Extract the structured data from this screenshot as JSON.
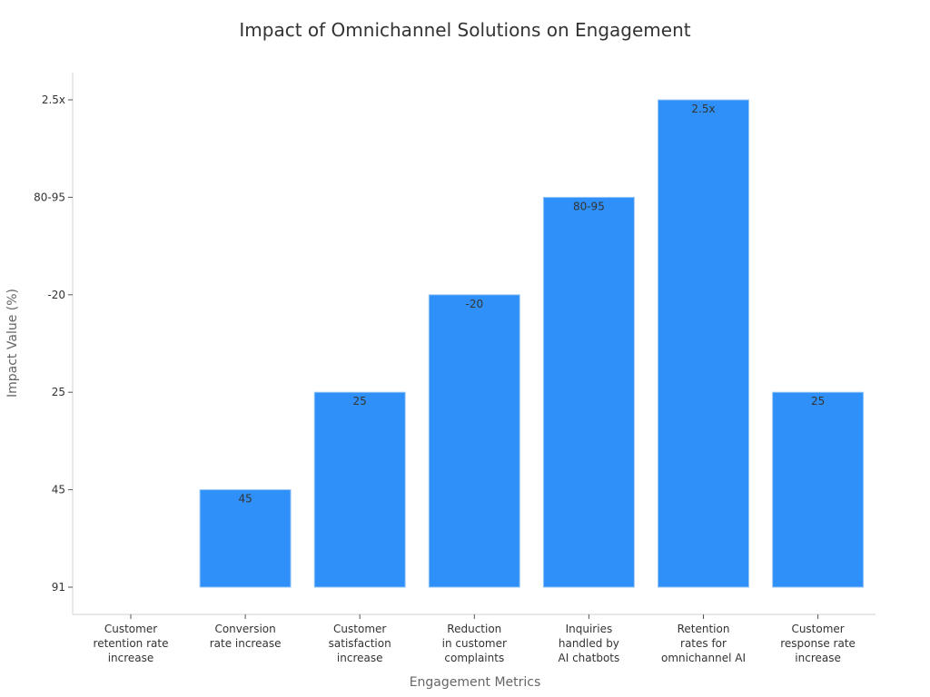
{
  "chart_data": {
    "type": "bar",
    "title": "Impact of Omnichannel Solutions on Engagement",
    "xlabel": "Engagement Metrics",
    "ylabel": "Impact Value (%)",
    "categories": [
      "Customer retention rate increase",
      "Conversion rate increase",
      "Customer satisfaction increase",
      "Reduction in customer complaints",
      "Inquiries handled by AI chatbots",
      "Retention rates for omnichannel AI",
      "Customer response rate increase"
    ],
    "category_lines": [
      [
        "Customer",
        "retention rate",
        "increase"
      ],
      [
        "Conversion",
        "rate increase"
      ],
      [
        "Customer",
        "satisfaction",
        "increase"
      ],
      [
        "Reduction",
        "in customer",
        "complaints"
      ],
      [
        "Inquiries",
        "handled by",
        "AI chatbots"
      ],
      [
        "Retention",
        "rates for",
        "omnichannel AI"
      ],
      [
        "Customer",
        "response rate",
        "increase"
      ]
    ],
    "y_ticks": [
      "91",
      "45",
      "25",
      "-20",
      "80-95",
      "2.5x"
    ],
    "values": [
      "91",
      "45",
      "25",
      "-20",
      "80-95",
      "2.5x",
      "25"
    ],
    "data_labels": [
      "",
      "45",
      "25",
      "-20",
      "80-95",
      "2.5x",
      "25"
    ],
    "bar_color": "#2e90f8",
    "grid": false,
    "legend": "none"
  }
}
